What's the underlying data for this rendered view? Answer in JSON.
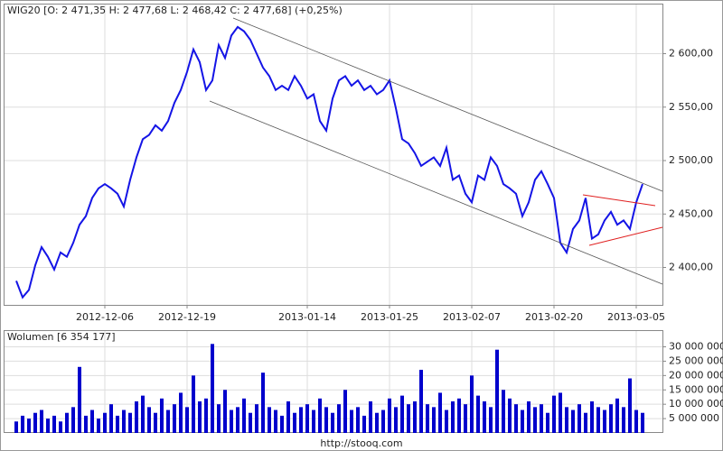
{
  "chart_data": [
    {
      "type": "line",
      "title": "WIG20 [O: 2 471,35  H: 2 477,68  L: 2 468,42  C: 2 477,68] (+0,25%)",
      "x": [
        null,
        null,
        null,
        null,
        null,
        null,
        null,
        null,
        null,
        null,
        null,
        null,
        null,
        null,
        "2012-12-06",
        null,
        null,
        null,
        null,
        null,
        null,
        null,
        null,
        null,
        null,
        null,
        null,
        "2012-12-19",
        null,
        null,
        null,
        null,
        null,
        null,
        null,
        null,
        null,
        null,
        null,
        null,
        null,
        null,
        null,
        null,
        null,
        null,
        "2013-01-14",
        null,
        null,
        null,
        null,
        null,
        null,
        null,
        null,
        null,
        null,
        null,
        null,
        "2013-01-25",
        null,
        null,
        null,
        null,
        null,
        null,
        null,
        null,
        null,
        null,
        null,
        null,
        "2013-02-07",
        null,
        null,
        null,
        null,
        null,
        null,
        null,
        null,
        null,
        null,
        null,
        null,
        "2013-02-20",
        null,
        null,
        null,
        null,
        null,
        null,
        null,
        null,
        null,
        null,
        null,
        null,
        "2013-03-05",
        null
      ],
      "series": [
        {
          "name": "WIG20",
          "color": "#1414e6",
          "values": [
            2387.5,
            2372,
            2379,
            2402,
            2419,
            2410,
            2398,
            2414,
            2410,
            2423,
            2440,
            2448,
            2465,
            2474,
            2478,
            2474,
            2469,
            2457,
            2482,
            2503,
            2520,
            2524,
            2533,
            2528,
            2537,
            2554,
            2566,
            2583,
            2604,
            2592,
            2566,
            2575,
            2608,
            2596,
            2617,
            2625,
            2621,
            2613,
            2600,
            2587,
            2579,
            2566,
            2570,
            2566,
            2579,
            2570,
            2558,
            2562,
            2537,
            2528,
            2558,
            2575,
            2579,
            2570,
            2575,
            2566,
            2570,
            2562,
            2566,
            2575,
            2549,
            2520,
            2516,
            2507,
            2495,
            2499,
            2503,
            2495,
            2512,
            2482,
            2486,
            2469,
            2461,
            2486,
            2482,
            2503,
            2495,
            2478,
            2474,
            2469,
            2448,
            2461,
            2482,
            2490,
            2478,
            2465,
            2423,
            2414,
            2436,
            2444,
            2465,
            2427,
            2431,
            2444,
            2452,
            2440,
            2444,
            2436,
            2461,
            2478
          ]
        }
      ],
      "ylim": [
        2365,
        2646
      ],
      "yticks": [
        {
          "value": 2400,
          "label": "2 400,00"
        },
        {
          "value": 2450,
          "label": "2 450,00"
        },
        {
          "value": 2500,
          "label": "2 500,00"
        },
        {
          "value": 2550,
          "label": "2 550,00"
        },
        {
          "value": 2600,
          "label": "2 600,00"
        }
      ],
      "grid": true
    },
    {
      "type": "bar",
      "title": "Wolumen [6 354 177]",
      "color": "#0000cc",
      "values": [
        4000000,
        6000000,
        5000000,
        7000000,
        8000000,
        5000000,
        6000000,
        4000000,
        7000000,
        9000000,
        23000000,
        6000000,
        8000000,
        5000000,
        7000000,
        10000000,
        6000000,
        8000000,
        7000000,
        11000000,
        13000000,
        9000000,
        7000000,
        12000000,
        8000000,
        10000000,
        14000000,
        9000000,
        20000000,
        11000000,
        12000000,
        31000000,
        10000000,
        15000000,
        8000000,
        9000000,
        12000000,
        7000000,
        10000000,
        21000000,
        9000000,
        8000000,
        6000000,
        11000000,
        7000000,
        9000000,
        10000000,
        8000000,
        12000000,
        9000000,
        7000000,
        10000000,
        15000000,
        8000000,
        9000000,
        6000000,
        11000000,
        7000000,
        8000000,
        12000000,
        9000000,
        13000000,
        10000000,
        11000000,
        22000000,
        10000000,
        9000000,
        14000000,
        8000000,
        11000000,
        12000000,
        10000000,
        20000000,
        13000000,
        11000000,
        9000000,
        29000000,
        15000000,
        12000000,
        10000000,
        8000000,
        11000000,
        9000000,
        10000000,
        7000000,
        13000000,
        14000000,
        9000000,
        8000000,
        10000000,
        7000000,
        11000000,
        9000000,
        8000000,
        10000000,
        12000000,
        9000000,
        19000000,
        8000000,
        7000000
      ],
      "ylim": [
        0,
        35500000
      ],
      "yticks": [
        {
          "value": 5000000,
          "label": "5 000 000"
        },
        {
          "value": 10000000,
          "label": "10 000 000"
        },
        {
          "value": 15000000,
          "label": "15 000 000"
        },
        {
          "value": 20000000,
          "label": "20 000 000"
        },
        {
          "value": 25000000,
          "label": "25 000 000"
        },
        {
          "value": 30000000,
          "label": "30 000 000"
        }
      ],
      "grid": true
    }
  ],
  "footer": "http://stooq.com"
}
